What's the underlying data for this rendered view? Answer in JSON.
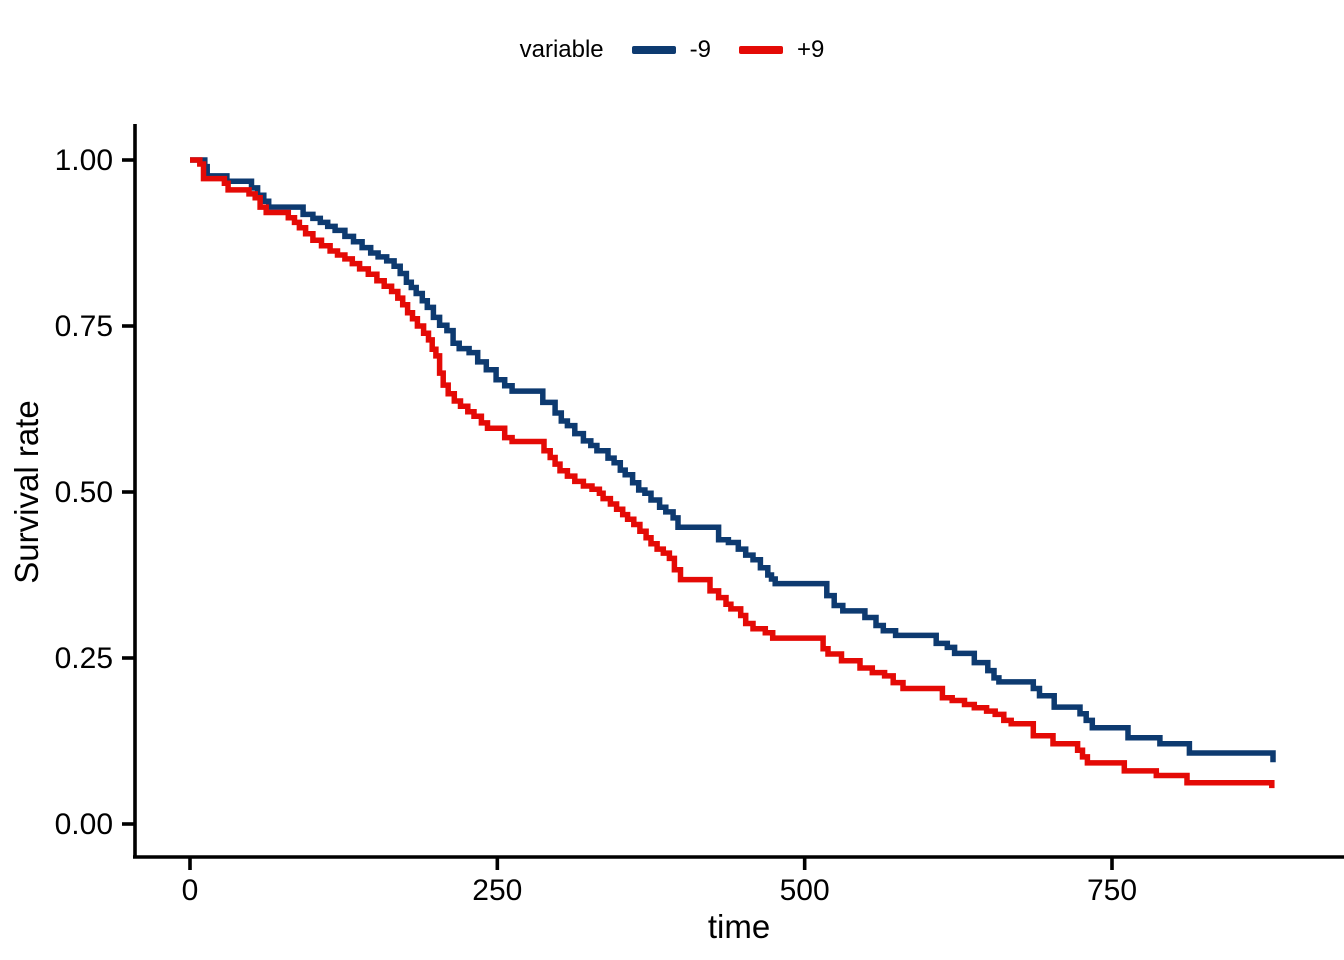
{
  "figure": {
    "background": "#ffffff",
    "text_color": "#000000"
  },
  "legend": {
    "title": "variable",
    "position": "top-center",
    "items": [
      {
        "label": "-9",
        "color": "#0d3a70"
      },
      {
        "label": "+9",
        "color": "#e40a06"
      }
    ]
  },
  "chart_data": {
    "type": "line",
    "subtype": "kaplan-meier-step-survival",
    "title": "",
    "xlabel": "time",
    "ylabel": "Survival rate",
    "legend_title": "variable",
    "legend_position": "top",
    "grid": "off",
    "xlim": [
      0,
      938
    ],
    "ylim": [
      0,
      1
    ],
    "x_ticks": [
      {
        "value": 0,
        "label": "0"
      },
      {
        "value": 250,
        "label": "250"
      },
      {
        "value": 500,
        "label": "500"
      },
      {
        "value": 750,
        "label": "750"
      }
    ],
    "y_ticks": [
      {
        "value": 0.0,
        "label": "0.00"
      },
      {
        "value": 0.25,
        "label": "0.25"
      },
      {
        "value": 0.5,
        "label": "0.50"
      },
      {
        "value": 0.75,
        "label": "0.75"
      },
      {
        "value": 1.0,
        "label": "1.00"
      }
    ],
    "series": [
      {
        "name": "-9",
        "color": "#0d3a70",
        "points": [
          [
            0,
            1.0
          ],
          [
            12,
            0.99
          ],
          [
            14,
            0.976
          ],
          [
            30,
            0.968
          ],
          [
            50,
            0.958
          ],
          [
            55,
            0.947
          ],
          [
            60,
            0.938
          ],
          [
            64,
            0.929
          ],
          [
            92,
            0.918
          ],
          [
            100,
            0.912
          ],
          [
            106,
            0.906
          ],
          [
            112,
            0.9
          ],
          [
            118,
            0.894
          ],
          [
            126,
            0.885
          ],
          [
            133,
            0.877
          ],
          [
            140,
            0.868
          ],
          [
            147,
            0.86
          ],
          [
            153,
            0.854
          ],
          [
            160,
            0.848
          ],
          [
            166,
            0.84
          ],
          [
            171,
            0.829
          ],
          [
            176,
            0.816
          ],
          [
            180,
            0.808
          ],
          [
            184,
            0.799
          ],
          [
            189,
            0.788
          ],
          [
            193,
            0.778
          ],
          [
            198,
            0.763
          ],
          [
            203,
            0.751
          ],
          [
            209,
            0.743
          ],
          [
            214,
            0.724
          ],
          [
            219,
            0.716
          ],
          [
            227,
            0.71
          ],
          [
            234,
            0.696
          ],
          [
            241,
            0.684
          ],
          [
            249,
            0.669
          ],
          [
            256,
            0.66
          ],
          [
            262,
            0.652
          ],
          [
            287,
            0.635
          ],
          [
            297,
            0.619
          ],
          [
            302,
            0.607
          ],
          [
            307,
            0.6
          ],
          [
            313,
            0.588
          ],
          [
            320,
            0.577
          ],
          [
            326,
            0.57
          ],
          [
            331,
            0.562
          ],
          [
            340,
            0.551
          ],
          [
            345,
            0.544
          ],
          [
            350,
            0.533
          ],
          [
            354,
            0.526
          ],
          [
            360,
            0.514
          ],
          [
            365,
            0.503
          ],
          [
            370,
            0.498
          ],
          [
            375,
            0.488
          ],
          [
            382,
            0.477
          ],
          [
            387,
            0.47
          ],
          [
            393,
            0.461
          ],
          [
            397,
            0.447
          ],
          [
            430,
            0.428
          ],
          [
            438,
            0.424
          ],
          [
            446,
            0.414
          ],
          [
            452,
            0.405
          ],
          [
            458,
            0.398
          ],
          [
            464,
            0.386
          ],
          [
            470,
            0.375
          ],
          [
            473,
            0.369
          ],
          [
            476,
            0.362
          ],
          [
            518,
            0.344
          ],
          [
            524,
            0.329
          ],
          [
            531,
            0.321
          ],
          [
            549,
            0.311
          ],
          [
            558,
            0.299
          ],
          [
            564,
            0.291
          ],
          [
            574,
            0.284
          ],
          [
            607,
            0.272
          ],
          [
            616,
            0.266
          ],
          [
            622,
            0.257
          ],
          [
            638,
            0.243
          ],
          [
            649,
            0.231
          ],
          [
            654,
            0.22
          ],
          [
            658,
            0.214
          ],
          [
            686,
            0.204
          ],
          [
            691,
            0.193
          ],
          [
            703,
            0.176
          ],
          [
            724,
            0.166
          ],
          [
            729,
            0.156
          ],
          [
            734,
            0.145
          ],
          [
            763,
            0.13
          ],
          [
            789,
            0.121
          ],
          [
            813,
            0.107
          ],
          [
            881,
            0.093
          ]
        ]
      },
      {
        "name": "+9",
        "color": "#e40a06",
        "points": [
          [
            0,
            1.0
          ],
          [
            8,
            0.994
          ],
          [
            11,
            0.972
          ],
          [
            28,
            0.965
          ],
          [
            31,
            0.955
          ],
          [
            48,
            0.949
          ],
          [
            53,
            0.943
          ],
          [
            57,
            0.929
          ],
          [
            62,
            0.921
          ],
          [
            80,
            0.913
          ],
          [
            85,
            0.906
          ],
          [
            89,
            0.898
          ],
          [
            94,
            0.889
          ],
          [
            100,
            0.879
          ],
          [
            107,
            0.871
          ],
          [
            114,
            0.863
          ],
          [
            120,
            0.857
          ],
          [
            126,
            0.851
          ],
          [
            132,
            0.844
          ],
          [
            138,
            0.836
          ],
          [
            145,
            0.828
          ],
          [
            152,
            0.818
          ],
          [
            158,
            0.81
          ],
          [
            164,
            0.802
          ],
          [
            169,
            0.792
          ],
          [
            173,
            0.782
          ],
          [
            177,
            0.77
          ],
          [
            181,
            0.761
          ],
          [
            185,
            0.75
          ],
          [
            190,
            0.739
          ],
          [
            194,
            0.729
          ],
          [
            197,
            0.715
          ],
          [
            200,
            0.705
          ],
          [
            203,
            0.679
          ],
          [
            206,
            0.661
          ],
          [
            210,
            0.648
          ],
          [
            215,
            0.637
          ],
          [
            220,
            0.629
          ],
          [
            226,
            0.621
          ],
          [
            231,
            0.614
          ],
          [
            237,
            0.604
          ],
          [
            242,
            0.596
          ],
          [
            256,
            0.582
          ],
          [
            262,
            0.576
          ],
          [
            288,
            0.562
          ],
          [
            293,
            0.552
          ],
          [
            297,
            0.542
          ],
          [
            301,
            0.532
          ],
          [
            307,
            0.524
          ],
          [
            313,
            0.516
          ],
          [
            320,
            0.509
          ],
          [
            327,
            0.504
          ],
          [
            333,
            0.498
          ],
          [
            336,
            0.49
          ],
          [
            342,
            0.482
          ],
          [
            347,
            0.474
          ],
          [
            352,
            0.466
          ],
          [
            356,
            0.459
          ],
          [
            361,
            0.451
          ],
          [
            366,
            0.441
          ],
          [
            371,
            0.431
          ],
          [
            375,
            0.422
          ],
          [
            380,
            0.414
          ],
          [
            385,
            0.408
          ],
          [
            390,
            0.4
          ],
          [
            394,
            0.383
          ],
          [
            399,
            0.368
          ],
          [
            423,
            0.351
          ],
          [
            430,
            0.341
          ],
          [
            436,
            0.331
          ],
          [
            440,
            0.324
          ],
          [
            448,
            0.314
          ],
          [
            452,
            0.302
          ],
          [
            458,
            0.294
          ],
          [
            468,
            0.288
          ],
          [
            474,
            0.28
          ],
          [
            515,
            0.264
          ],
          [
            519,
            0.256
          ],
          [
            530,
            0.246
          ],
          [
            545,
            0.235
          ],
          [
            555,
            0.228
          ],
          [
            565,
            0.223
          ],
          [
            572,
            0.213
          ],
          [
            580,
            0.204
          ],
          [
            612,
            0.19
          ],
          [
            620,
            0.186
          ],
          [
            630,
            0.18
          ],
          [
            638,
            0.175
          ],
          [
            648,
            0.17
          ],
          [
            655,
            0.165
          ],
          [
            662,
            0.156
          ],
          [
            668,
            0.151
          ],
          [
            686,
            0.133
          ],
          [
            702,
            0.121
          ],
          [
            722,
            0.111
          ],
          [
            726,
            0.101
          ],
          [
            730,
            0.092
          ],
          [
            760,
            0.08
          ],
          [
            786,
            0.073
          ],
          [
            811,
            0.062
          ],
          [
            880,
            0.054
          ]
        ]
      }
    ]
  }
}
